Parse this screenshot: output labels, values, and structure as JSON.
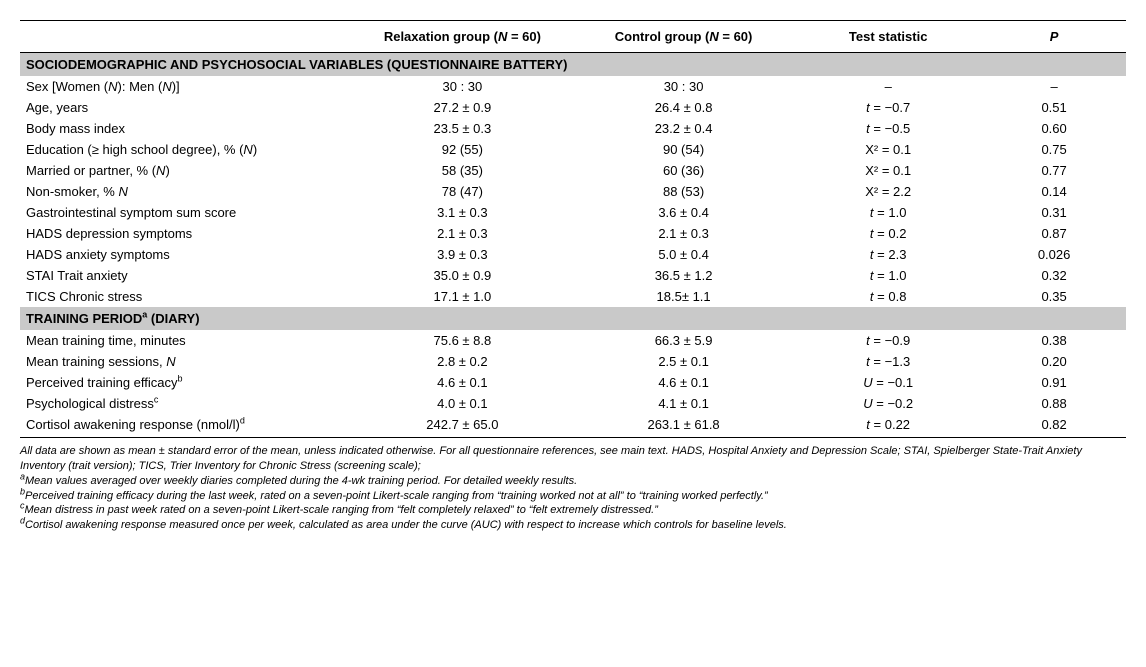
{
  "columns": {
    "blank": "",
    "relax": "Relaxation group (N = 60)",
    "ctrl": "Control group (N = 60)",
    "stat": "Test statistic",
    "p": "P"
  },
  "section1": "SOCIODEMOGRAPHIC AND PSYCHOSOCIAL VARIABLES (QUESTIONNAIRE BATTERY)",
  "section2_pre": "TRAINING PERIOD",
  "section2_sup": "a",
  "section2_post": " (DIARY)",
  "rows1": [
    {
      "label": "Sex [Women (N): Men (N)]",
      "relax": "30 : 30",
      "ctrl": "30 : 30",
      "stat": "–",
      "p": "–"
    },
    {
      "label": "Age, years",
      "relax": "27.2 ± 0.9",
      "ctrl": "26.4 ± 0.8",
      "stat": "t = −0.7",
      "p": "0.51"
    },
    {
      "label": "Body mass index",
      "relax": "23.5 ± 0.3",
      "ctrl": "23.2 ± 0.4",
      "stat": "t = −0.5",
      "p": "0.60"
    },
    {
      "label": "Education (≥ high school degree), % (N)",
      "relax": "92 (55)",
      "ctrl": "90 (54)",
      "stat": "X² =  0.1",
      "p": "0.75"
    },
    {
      "label": "Married or partner, % (N)",
      "relax": "58 (35)",
      "ctrl": "60 (36)",
      "stat": "X² = 0.1",
      "p": "0.77"
    },
    {
      "label": "Non-smoker, % N",
      "relax": "78 (47)",
      "ctrl": "88 (53)",
      "stat": "X² = 2.2",
      "p": "0.14"
    },
    {
      "label": "Gastrointestinal symptom sum score",
      "relax": "3.1 ± 0.3",
      "ctrl": "3.6 ± 0.4",
      "stat": "t =  1.0",
      "p": "0.31"
    },
    {
      "label": "HADS depression symptoms",
      "relax": "2.1 ± 0.3",
      "ctrl": "2.1 ± 0.3",
      "stat": "t = 0.2",
      "p": "0.87"
    },
    {
      "label": "HADS anxiety symptoms",
      "relax": "3.9 ± 0.3",
      "ctrl": "5.0 ± 0.4",
      "stat": "t = 2.3",
      "p": "0.026"
    },
    {
      "label": "STAI Trait anxiety",
      "relax": "35.0 ± 0.9",
      "ctrl": "36.5 ± 1.2",
      "stat": "t = 1.0",
      "p": "0.32"
    },
    {
      "label": "TICS Chronic stress",
      "relax": "17.1 ± 1.0",
      "ctrl": "18.5± 1.1",
      "stat": "t = 0.8",
      "p": "0.35"
    }
  ],
  "rows2": [
    {
      "label": "Mean training time, minutes",
      "sup": "",
      "relax": "75.6 ± 8.8",
      "ctrl": "66.3 ± 5.9",
      "stat": "t =  −0.9",
      "p": "0.38"
    },
    {
      "label": "Mean training sessions, N",
      "sup": "",
      "relax": "2.8 ± 0.2",
      "ctrl": "2.5 ± 0.1",
      "stat": "t = −1.3",
      "p": "0.20"
    },
    {
      "label": "Perceived training efficacy",
      "sup": "b",
      "relax": "4.6 ± 0.1",
      "ctrl": "4.6 ± 0.1",
      "stat": "U = −0.1",
      "p": "0.91"
    },
    {
      "label": "Psychological distress",
      "sup": "c",
      "relax": "4.0 ± 0.1",
      "ctrl": "4.1 ± 0.1",
      "stat": "U = −0.2",
      "p": "0.88"
    },
    {
      "label": "Cortisol awakening response (nmol/l)",
      "sup": "d",
      "relax": "242.7 ± 65.0",
      "ctrl": "263.1 ± 61.8",
      "stat": "t = 0.22",
      "p": "0.82"
    }
  ],
  "footnotes": {
    "main": "All data are shown as mean ± standard error of the mean, unless indicated otherwise. For all questionnaire references, see main text. HADS, Hospital Anxiety and Depression Scale; STAI, Spielberger State-Trait Anxiety Inventory (trait version); TICS, Trier Inventory for Chronic Stress (screening scale);",
    "a": "Mean values averaged over weekly diaries completed during the 4-wk training period. For detailed weekly results.",
    "b": "Perceived training efficacy during the last week, rated on a seven-point Likert-scale ranging from “training worked not at all” to “training worked perfectly.”",
    "c": "Mean distress in past week rated on a seven-point Likert-scale ranging from “felt completely relaxed” to “felt extremely distressed.”",
    "d": "Cortisol awakening response measured once per week, calculated as area under the curve (AUC) with respect to increase which controls for baseline levels."
  }
}
